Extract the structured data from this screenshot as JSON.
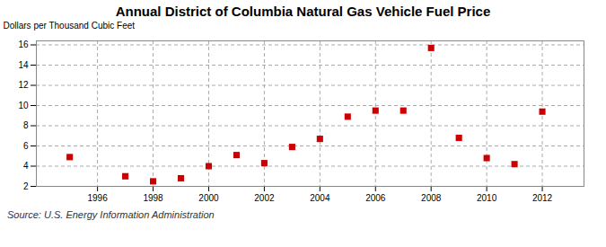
{
  "chart_data": {
    "type": "scatter",
    "title": "Annual District of Columbia Natural Gas Vehicle Fuel Price",
    "ylabel": "Dollars per Thousand Cubic Feet",
    "source": "Source: U.S. Energy Information Administration",
    "x": [
      1995,
      1997,
      1998,
      1999,
      2000,
      2001,
      2002,
      2003,
      2004,
      2005,
      2006,
      2007,
      2008,
      2009,
      2010,
      2011,
      2012
    ],
    "values": [
      4.9,
      3.0,
      2.5,
      2.8,
      4.0,
      5.1,
      4.3,
      5.9,
      6.7,
      8.9,
      9.5,
      9.5,
      15.7,
      6.8,
      4.8,
      4.2,
      9.4
    ],
    "color": "#cc0000",
    "marker": "square",
    "xlim": [
      1993.8,
      2013.5
    ],
    "xticks": [
      1996,
      1998,
      2000,
      2002,
      2004,
      2006,
      2008,
      2010,
      2012
    ],
    "ylim": [
      2,
      16.4
    ],
    "yticks": [
      2,
      4,
      6,
      8,
      10,
      12,
      14,
      16
    ],
    "grid": true
  }
}
